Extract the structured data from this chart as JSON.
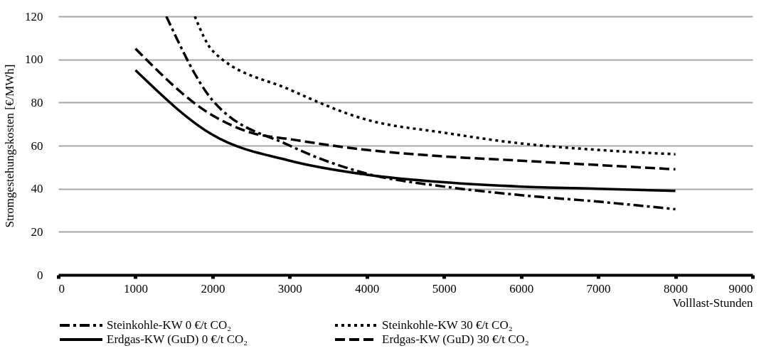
{
  "chart_data": {
    "type": "line",
    "xlabel": "Volllast-Stunden",
    "ylabel": "Stromgestehungskosten [€/MWh]",
    "xlim": [
      0,
      9000
    ],
    "xticks": [
      0,
      1000,
      2000,
      3000,
      4000,
      5000,
      6000,
      7000,
      8000,
      9000
    ],
    "ylim": [
      0,
      120
    ],
    "yticks": [
      0,
      20,
      40,
      60,
      80,
      100,
      120
    ],
    "grid": "y",
    "legend": "bottom",
    "marker": "none",
    "series": [
      {
        "name": "Steinkohle-KW 0 €/t CO₂",
        "color": "#000000",
        "line_style": "dashdot",
        "x": [
          1400,
          2000,
          3000,
          4000,
          5000,
          6000,
          7000,
          8000
        ],
        "values": [
          120,
          81,
          60,
          47,
          41,
          37,
          34,
          30.5
        ]
      },
      {
        "name": "Steinkohle-KW 30 €/t CO₂",
        "color": "#000000",
        "line_style": "dotted",
        "x": [
          1770,
          2000,
          3000,
          4000,
          5000,
          6000,
          7000,
          8000
        ],
        "values": [
          120,
          104,
          86,
          72,
          66,
          61,
          58,
          56
        ]
      },
      {
        "name": "Erdgas-KW (GuD) 0 €/t CO₂",
        "color": "#000000",
        "line_style": "solid",
        "x": [
          1000,
          2000,
          3000,
          4000,
          5000,
          6000,
          7000,
          8000
        ],
        "values": [
          95,
          65,
          53,
          46.5,
          43,
          41,
          40,
          39
        ]
      },
      {
        "name": "Erdgas-KW (GuD) 30 €/t CO₂",
        "color": "#000000",
        "line_style": "dashed",
        "x": [
          1000,
          2000,
          2500,
          3000,
          4000,
          5000,
          6000,
          7000,
          8000
        ],
        "values": [
          105,
          74,
          66,
          63,
          58,
          55,
          53,
          51,
          49
        ]
      }
    ]
  }
}
